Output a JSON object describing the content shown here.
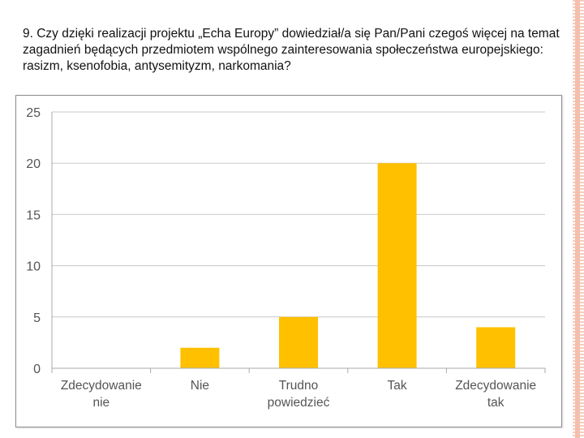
{
  "question": "9. Czy dzięki realizacji projektu „Echa Europy” dowiedział/a się Pan/Pani czegoś więcej na temat zagadnień będących przedmiotem wspólnego zainteresowania społeczeństwa europejskiego: rasizm, ksenofobia, antysemityzm, narkomania?",
  "chart_data": {
    "type": "bar",
    "categories": [
      [
        "Zdecydowanie",
        "nie"
      ],
      [
        "Nie"
      ],
      [
        "Trudno",
        "powiedzieć"
      ],
      [
        "Tak"
      ],
      [
        "Zdecydowanie",
        "tak"
      ]
    ],
    "values": [
      0,
      2,
      5,
      20,
      4
    ],
    "ylim": [
      0,
      25
    ],
    "yticks": [
      0,
      5,
      10,
      15,
      20,
      25
    ],
    "grid": true,
    "legend": "none",
    "bar_color": "#ffc000"
  }
}
